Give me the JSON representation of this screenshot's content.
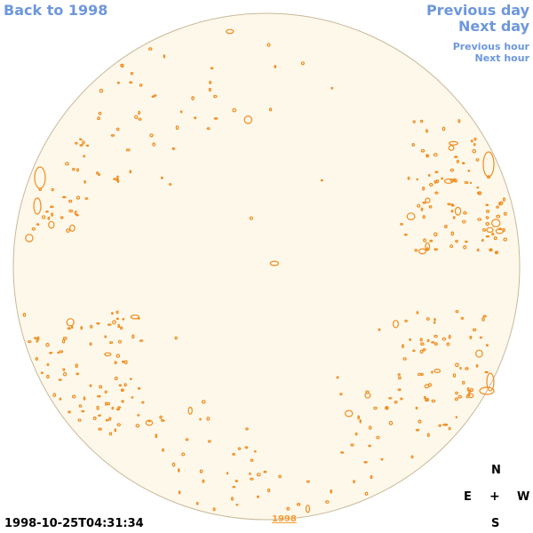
{
  "nav": {
    "back_label": "Back to 1998",
    "previous_day_label": "Previous day",
    "next_day_label": "Next day",
    "previous_hour_label": "Previous hour",
    "next_hour_label": "Next hour"
  },
  "image": {
    "timestamp": "1998-10-25T04:31:34",
    "year_link_label": "1998"
  },
  "compass": {
    "north": "N",
    "east": "E",
    "center": "+",
    "west": "W",
    "south": "S"
  },
  "colors": {
    "link": "#6d97dd",
    "disk_fill": "#fdf8ea",
    "disk_edge": "#c9b89a",
    "contour": "#f08c1e",
    "year_link": "#f39c34"
  }
}
